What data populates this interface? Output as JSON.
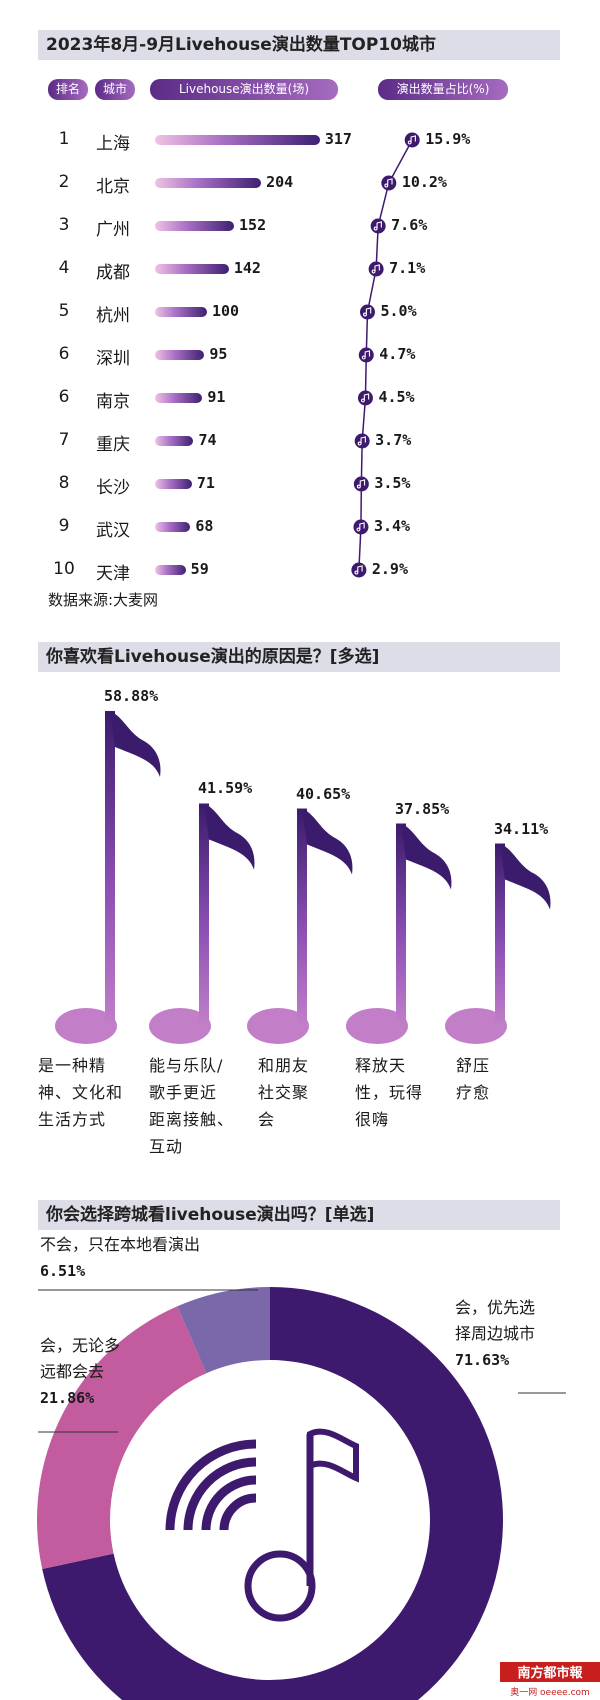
{
  "section1": {
    "title": "2023年8月-9月Livehouse演出数量TOP10城市",
    "headers": {
      "rank": "排名",
      "city": "城市",
      "count": "Livehouse演出数量(场)",
      "share": "演出数量占比(%)"
    },
    "source": "数据来源:大麦网"
  },
  "section2": {
    "title": "你喜欢看Livehouse演出的原因是？[多选]"
  },
  "section3": {
    "title": "你会选择跨城看livehouse演出吗？[单选]"
  },
  "logo": {
    "line1": "南方都市報",
    "line2": "奥一网 oeeee.com"
  },
  "colors": {
    "dark_purple": "#3e1a6e",
    "mid_purple": "#8a4fb3",
    "pink": "#c35c9f",
    "lavender": "#7b68aa",
    "header_bg": "#dcdde7"
  },
  "chart_data": [
    {
      "type": "bar",
      "title": "2023年8月-9月Livehouse演出数量TOP10城市",
      "ranks": [
        "1",
        "2",
        "3",
        "4",
        "5",
        "6",
        "6",
        "7",
        "8",
        "9",
        "10"
      ],
      "categories": [
        "上海",
        "北京",
        "广州",
        "成都",
        "杭州",
        "深圳",
        "南京",
        "重庆",
        "长沙",
        "武汉",
        "天津"
      ],
      "series": [
        {
          "name": "Livehouse演出数量(场)",
          "values": [
            317,
            204,
            152,
            142,
            100,
            95,
            91,
            74,
            71,
            68,
            59
          ]
        },
        {
          "name": "演出数量占比(%)",
          "values": [
            15.9,
            10.2,
            7.6,
            7.1,
            5.0,
            4.7,
            4.5,
            3.7,
            3.5,
            3.4,
            2.9
          ],
          "labels": [
            "15.9%",
            "10.2%",
            "7.6%",
            "7.1%",
            "5.0%",
            "4.7%",
            "4.5%",
            "3.7%",
            "3.5%",
            "3.4%",
            "2.9%"
          ]
        }
      ]
    },
    {
      "type": "bar",
      "title": "你喜欢看Livehouse演出的原因是？[多选]",
      "categories": [
        "是一种精神、文化和生活方式",
        "能与乐队/歌手更近距离接触、互动",
        "和朋友社交聚会",
        "释放天性，玩得很嗨",
        "舒压疗愈"
      ],
      "label_lines": [
        [
          "是一种精",
          "神、文化和",
          "生活方式"
        ],
        [
          "能与乐队/",
          "歌手更近",
          "距离接触、",
          "互动"
        ],
        [
          "和朋友",
          "社交聚",
          "会"
        ],
        [
          "释放天",
          "性，玩得",
          "很嗨"
        ],
        [
          "舒压",
          "疗愈"
        ]
      ],
      "values": [
        58.88,
        41.59,
        40.65,
        37.85,
        34.11
      ],
      "labels": [
        "58.88%",
        "41.59%",
        "40.65%",
        "37.85%",
        "34.11%"
      ]
    },
    {
      "type": "pie",
      "title": "你会选择跨城看livehouse演出吗？[单选]",
      "slices": [
        {
          "label_lines": [
            "会，优先选",
            "择周边城市"
          ],
          "value": 71.63,
          "pct": "71.63%",
          "color": "#3e1a6e"
        },
        {
          "label_lines": [
            "会，无论多",
            "远都会去"
          ],
          "value": 21.86,
          "pct": "21.86%",
          "color": "#c35c9f"
        },
        {
          "label_lines": [
            "不会，只在本地看演出"
          ],
          "value": 6.51,
          "pct": "6.51%",
          "color": "#7b68aa"
        }
      ]
    }
  ]
}
